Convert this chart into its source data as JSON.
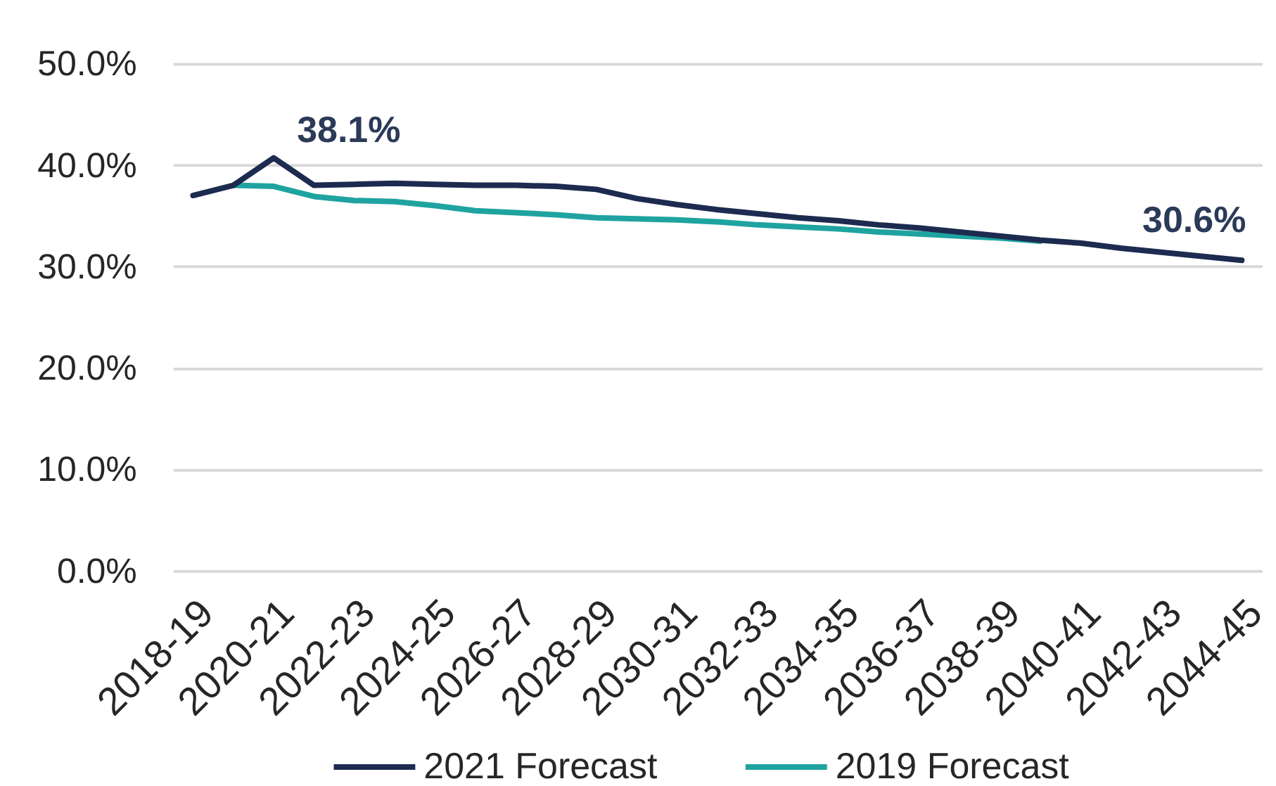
{
  "chart_data": {
    "type": "line",
    "categories": [
      "2018-19",
      null,
      "2020-21",
      null,
      "2022-23",
      null,
      "2024-25",
      null,
      "2026-27",
      null,
      "2028-29",
      null,
      "2030-31",
      null,
      "2032-33",
      null,
      "2034-35",
      null,
      "2036-37",
      null,
      "2038-39",
      null,
      "2040-41",
      null,
      "2042-43",
      null,
      "2044-45"
    ],
    "series": [
      {
        "name": "2021 Forecast",
        "color": "#1c2b4f",
        "values": [
          37.0,
          38.0,
          40.7,
          38.0,
          38.1,
          38.2,
          38.1,
          38.0,
          38.0,
          37.9,
          37.6,
          36.7,
          36.1,
          35.6,
          35.2,
          34.8,
          34.5,
          34.1,
          33.8,
          33.4,
          33.0,
          32.6,
          32.3,
          31.8,
          31.4,
          31.0,
          30.6
        ],
        "value_labels": [
          null,
          null,
          null,
          null,
          "38.1%",
          null,
          null,
          null,
          null,
          null,
          null,
          null,
          null,
          null,
          null,
          null,
          null,
          null,
          null,
          null,
          null,
          null,
          null,
          null,
          null,
          null,
          "30.6%"
        ]
      },
      {
        "name": "2019 Forecast",
        "color": "#1fa3a0",
        "values": [
          null,
          38.0,
          37.9,
          36.9,
          36.5,
          36.4,
          36.0,
          35.5,
          35.3,
          35.1,
          34.8,
          34.7,
          34.6,
          34.4,
          34.1,
          33.9,
          33.7,
          33.4,
          33.2,
          33.0,
          32.8,
          32.5,
          null,
          null,
          null,
          null,
          null
        ]
      }
    ],
    "ylim": [
      0,
      50
    ],
    "yticks": [
      {
        "value": 0,
        "label": "0.0%"
      },
      {
        "value": 10,
        "label": "10.0%"
      },
      {
        "value": 20,
        "label": "20.0%"
      },
      {
        "value": 30,
        "label": "30.0%"
      },
      {
        "value": 40,
        "label": "40.0%"
      },
      {
        "value": 50,
        "label": "50.0%"
      }
    ],
    "grid": "y",
    "legend": "bottom"
  }
}
